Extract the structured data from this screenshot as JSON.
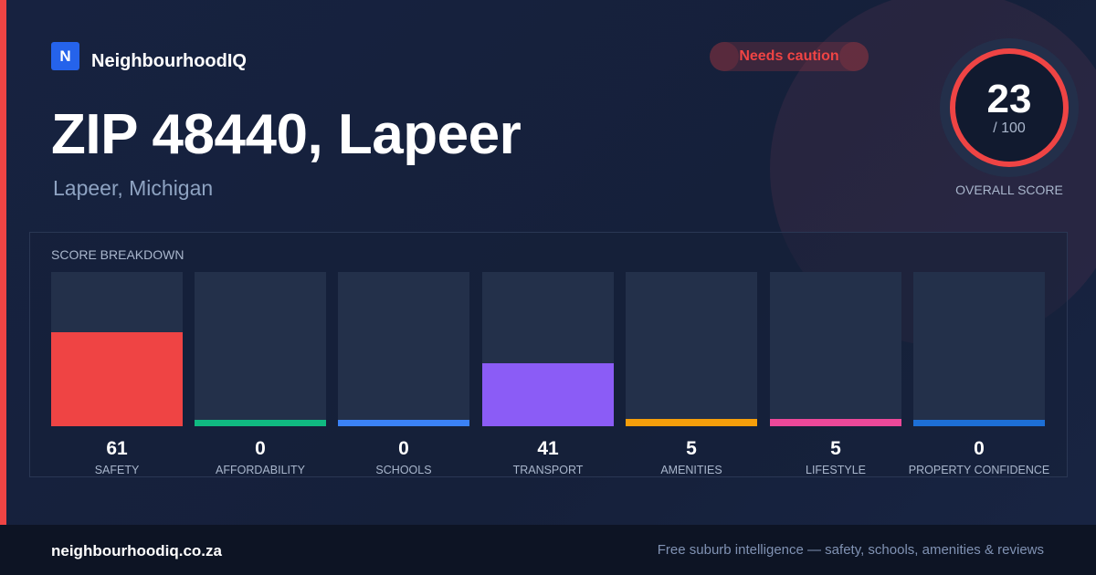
{
  "brand": {
    "logo_letter": "N",
    "name": "NeighbourhoodIQ",
    "color": "#2563eb"
  },
  "badge": {
    "label": "Needs caution",
    "color": "#ef4444"
  },
  "header": {
    "title": "ZIP 48440, Lapeer",
    "subtitle": "Lapeer, Michigan"
  },
  "overall": {
    "score": "23",
    "max_label": "/ 100",
    "label": "OVERALL SCORE",
    "value": 23,
    "max": 100,
    "ring_color": "#ef4444"
  },
  "breakdown": {
    "title": "SCORE BREAKDOWN",
    "categories": [
      {
        "value": "61",
        "label": "SAFETY",
        "percent": 61,
        "color": "#ef4444"
      },
      {
        "value": "0",
        "label": "AFFORDABILITY",
        "percent": 0,
        "color": "#10b981"
      },
      {
        "value": "0",
        "label": "SCHOOLS",
        "percent": 0,
        "color": "#3b82f6"
      },
      {
        "value": "41",
        "label": "TRANSPORT",
        "percent": 41,
        "color": "#8b5cf6"
      },
      {
        "value": "5",
        "label": "AMENITIES",
        "percent": 5,
        "color": "#f59e0b"
      },
      {
        "value": "5",
        "label": "LIFESTYLE",
        "percent": 5,
        "color": "#ec4899"
      },
      {
        "value": "0",
        "label": "PROPERTY CONFIDENCE",
        "percent": 0,
        "color": "#1d6fd6"
      }
    ]
  },
  "footer": {
    "site": "neighbourhoodiq.co.za",
    "tagline": "Free suburb intelligence — safety, schools, amenities & reviews"
  }
}
